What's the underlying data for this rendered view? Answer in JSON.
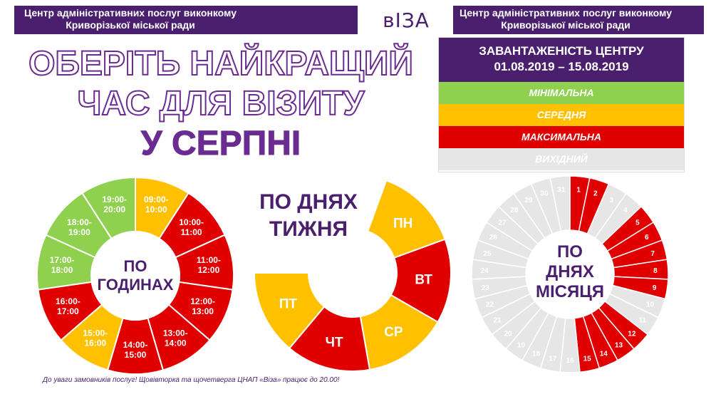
{
  "header": {
    "left_text": "Центр адміністративних послуг виконкому Криворізької міської ради",
    "logo_text": "вІЗА",
    "right_text": "Центр адміністративних послуг виконкому Криворізької міської ради"
  },
  "title": {
    "line1": "ОБЕРІТЬ НАЙКРАЩИЙ",
    "line2": "ЧАС ДЛЯ ВІЗИТУ",
    "line3": "У СЕРПНІ"
  },
  "legend": {
    "heading": "ЗАВАНТАЖЕНІСТЬ ЦЕНТРУ",
    "period": "01.08.2019 – 15.08.2019",
    "items": [
      {
        "label": "МІНІМАЛЬНА",
        "color": "#8fd14f",
        "text_color": "#ffffff"
      },
      {
        "label": "СЕРЕДНЯ",
        "color": "#ffc000",
        "text_color": "#ffffff"
      },
      {
        "label": "МАКСИМАЛЬНА",
        "color": "#e00000",
        "text_color": "#ffffff"
      },
      {
        "label": "ВИХІДНИЙ",
        "color": "#e6e6e6",
        "text_color": "#ffffff"
      }
    ]
  },
  "colors": {
    "min": "#8fd14f",
    "mid": "#ffc000",
    "max": "#e00000",
    "off": "#e6e6e6",
    "purple": "#4a1f6e"
  },
  "hours_chart": {
    "center_line1": "ПО",
    "center_line2": "ГОДИНАХ",
    "slots": [
      {
        "label1": "09:00-",
        "label2": "10:00",
        "load": "mid"
      },
      {
        "label1": "10:00-",
        "label2": "11:00",
        "load": "max"
      },
      {
        "label1": "11:00-",
        "label2": "12:00",
        "load": "max"
      },
      {
        "label1": "12:00-",
        "label2": "13:00",
        "load": "max"
      },
      {
        "label1": "13:00-",
        "label2": "14:00",
        "load": "max"
      },
      {
        "label1": "14:00-",
        "label2": "15:00",
        "load": "max"
      },
      {
        "label1": "15:00-",
        "label2": "16:00",
        "load": "mid"
      },
      {
        "label1": "16:00-",
        "label2": "17:00",
        "load": "max"
      },
      {
        "label1": "17:00-",
        "label2": "18:00",
        "load": "min"
      },
      {
        "label1": "18:00-",
        "label2": "19:00",
        "load": "min"
      },
      {
        "label1": "19:00-",
        "label2": "20:00",
        "load": "min"
      }
    ]
  },
  "weekdays_chart": {
    "title_line1": "ПО ДНЯХ",
    "title_line2": "ТИЖНЯ",
    "days": [
      {
        "label": "ПН",
        "load": "mid"
      },
      {
        "label": "ВТ",
        "load": "max"
      },
      {
        "label": "СР",
        "load": "mid"
      },
      {
        "label": "ЧТ",
        "load": "max"
      },
      {
        "label": "ПТ",
        "load": "mid"
      }
    ]
  },
  "month_chart": {
    "center_line1": "ПО",
    "center_line2": "ДНЯХ",
    "center_line3": "МІСЯЦЯ",
    "days": [
      {
        "label": "1",
        "load": "max"
      },
      {
        "label": "2",
        "load": "max"
      },
      {
        "label": "3",
        "load": "off"
      },
      {
        "label": "4",
        "load": "off"
      },
      {
        "label": "5",
        "load": "max"
      },
      {
        "label": "6",
        "load": "max"
      },
      {
        "label": "7",
        "load": "max"
      },
      {
        "label": "8",
        "load": "max"
      },
      {
        "label": "9",
        "load": "max"
      },
      {
        "label": "10",
        "load": "off"
      },
      {
        "label": "11",
        "load": "off"
      },
      {
        "label": "12",
        "load": "max"
      },
      {
        "label": "13",
        "load": "max"
      },
      {
        "label": "14",
        "load": "max"
      },
      {
        "label": "15",
        "load": "max"
      },
      {
        "label": "16",
        "load": "off"
      },
      {
        "label": "17",
        "load": "off"
      },
      {
        "label": "18",
        "load": "off"
      },
      {
        "label": "19",
        "load": "off"
      },
      {
        "label": "20",
        "load": "off"
      },
      {
        "label": "21",
        "load": "off"
      },
      {
        "label": "22",
        "load": "off"
      },
      {
        "label": "23",
        "load": "off"
      },
      {
        "label": "24",
        "load": "off"
      },
      {
        "label": "25",
        "load": "off"
      },
      {
        "label": "26",
        "load": "off"
      },
      {
        "label": "27",
        "load": "off"
      },
      {
        "label": "28",
        "load": "off"
      },
      {
        "label": "29",
        "load": "off"
      },
      {
        "label": "30",
        "load": "off"
      },
      {
        "label": "31",
        "load": "off"
      }
    ]
  },
  "footnote": "До уваги замовників послуг! Щовівторка та щочетверга ЦНАП «Віза» працює до 20.00!"
}
